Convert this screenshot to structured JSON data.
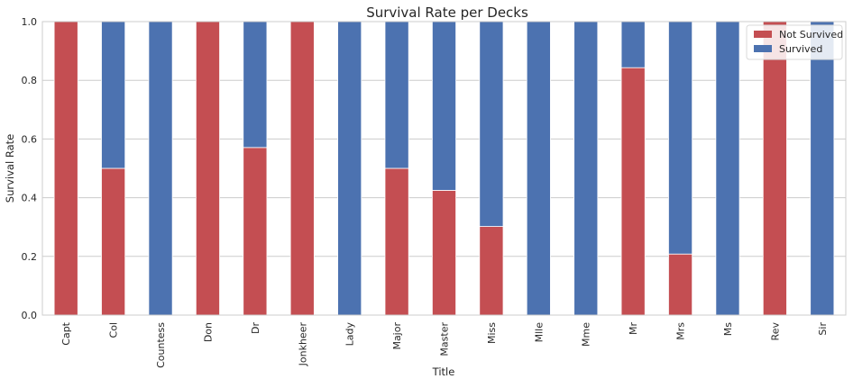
{
  "chart_data": {
    "type": "bar",
    "stacked": true,
    "title": "Survival Rate per Decks",
    "xlabel": "Title",
    "ylabel": "Survival Rate",
    "ylim": [
      0,
      1.0
    ],
    "yticks": [
      "0.0",
      "0.2",
      "0.4",
      "0.6",
      "0.8",
      "1.0"
    ],
    "grid": "horizontal",
    "legend_position": "top-right",
    "categories": [
      "Capt",
      "Col",
      "Countess",
      "Don",
      "Dr",
      "Jonkheer",
      "Lady",
      "Major",
      "Master",
      "Miss",
      "Mlle",
      "Mme",
      "Mr",
      "Mrs",
      "Ms",
      "Rev",
      "Sir"
    ],
    "series": [
      {
        "name": "Not Survived",
        "color": "#c44e52",
        "values": [
          1.0,
          0.5,
          0.0,
          1.0,
          0.571,
          1.0,
          0.0,
          0.5,
          0.425,
          0.302,
          0.0,
          0.0,
          0.843,
          0.208,
          0.0,
          1.0,
          0.0
        ]
      },
      {
        "name": "Survived",
        "color": "#4c72b0",
        "values": [
          0.0,
          0.5,
          1.0,
          0.0,
          0.429,
          0.0,
          1.0,
          0.5,
          0.575,
          0.698,
          1.0,
          1.0,
          0.157,
          0.792,
          1.0,
          0.0,
          1.0
        ]
      }
    ]
  }
}
